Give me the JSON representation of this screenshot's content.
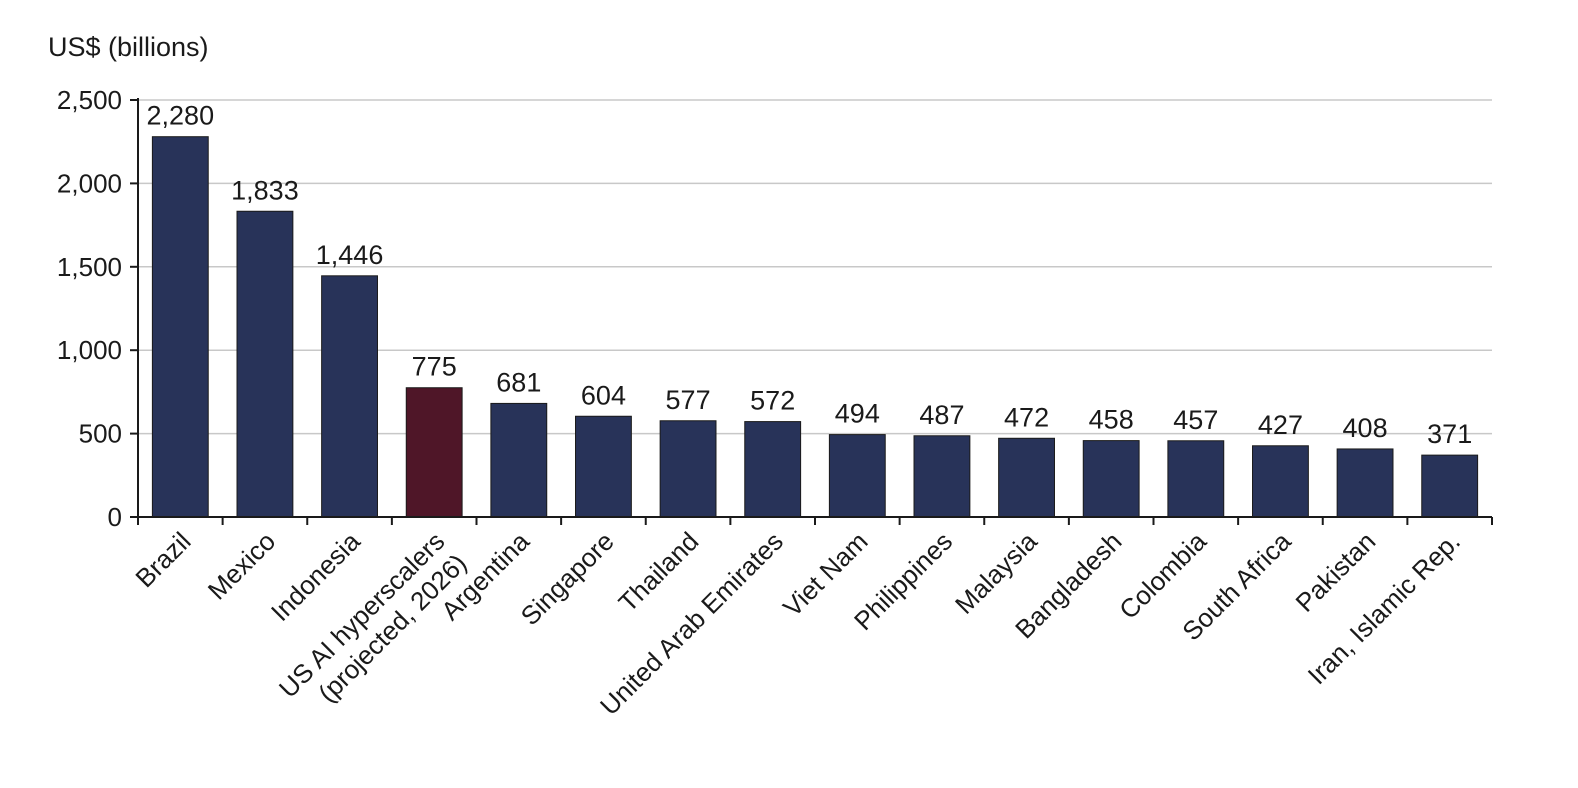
{
  "chart_data": {
    "type": "bar",
    "ylabel": "US$ (billions)",
    "ylim": [
      0,
      2500
    ],
    "yticks": [
      0,
      500,
      1000,
      1500,
      2000,
      2500
    ],
    "ytick_labels": [
      "0",
      "500",
      "1,000",
      "1,500",
      "2,000",
      "2,500"
    ],
    "grid": true,
    "categories": [
      "Brazil",
      "Mexico",
      "Indonesia",
      [
        "US AI hyperscalers",
        "(projected, 2026)"
      ],
      "Argentina",
      "Singapore",
      "Thailand",
      "United Arab Emirates",
      "Viet Nam",
      "Philippines",
      "Malaysia",
      "Bangladesh",
      "Colombia",
      "South Africa",
      "Pakistan",
      "Iran, Islamic Rep."
    ],
    "values": [
      2280,
      1833,
      1446,
      775,
      681,
      604,
      577,
      572,
      494,
      487,
      472,
      458,
      457,
      427,
      408,
      371
    ],
    "value_labels": [
      "2,280",
      "1,833",
      "1,446",
      "775",
      "681",
      "604",
      "577",
      "572",
      "494",
      "487",
      "472",
      "458",
      "457",
      "427",
      "408",
      "371"
    ],
    "highlight_index": 3,
    "colors": {
      "default": "#283359",
      "highlight": "#4f1628"
    }
  }
}
